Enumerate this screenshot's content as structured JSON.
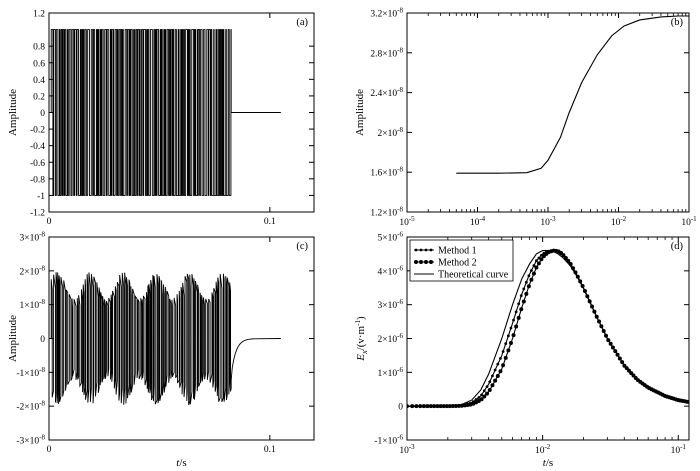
{
  "chart_data": [
    {
      "type": "line",
      "panel_label": "(a)",
      "ylabel": "Amplitude",
      "xlabel": "",
      "xscale": "linear",
      "xlim": [
        0,
        0.12
      ],
      "ylim": [
        -1.2,
        1.2
      ],
      "xticks": [
        {
          "v": 0,
          "t": "0"
        },
        {
          "v": 0.1,
          "t": "0.1"
        }
      ],
      "yticks": [
        {
          "v": 1.2,
          "t": "1.2"
        },
        {
          "v": 0.8,
          "t": "0.8"
        },
        {
          "v": 0.6,
          "t": "0.6"
        },
        {
          "v": 0.4,
          "t": "0.4"
        },
        {
          "v": 0.2,
          "t": "0.2"
        },
        {
          "v": 0,
          "t": "0"
        },
        {
          "v": -0.2,
          "t": "-0.2"
        },
        {
          "v": -0.4,
          "t": "-0.4"
        },
        {
          "v": -0.6,
          "t": "-0.6"
        },
        {
          "v": -0.8,
          "t": "-0.8"
        },
        {
          "v": -1,
          "t": "-1"
        },
        {
          "v": -1.2,
          "t": "-1.2"
        }
      ],
      "series": [
        {
          "values": [
            0,
            1,
            -1,
            1,
            -1,
            0
          ],
          "signal": {
            "kind": "pseudo-random binary sequence",
            "amplitude": 1,
            "start": 0.001,
            "end": 0.0825,
            "after": 0,
            "x_end": 0.105
          }
        }
      ]
    },
    {
      "type": "line",
      "panel_label": "(b)",
      "ylabel": "Amplitude",
      "xlabel": "",
      "xscale": "log",
      "xlim": [
        1e-05,
        0.1
      ],
      "ylim": [
        1.2e-08,
        3.2e-08
      ],
      "xticks": [
        {
          "v": 1e-05,
          "b": "10",
          "e": "-5"
        },
        {
          "v": 0.0001,
          "b": "10",
          "e": "-4"
        },
        {
          "v": 0.001,
          "b": "10",
          "e": "-3"
        },
        {
          "v": 0.01,
          "b": "10",
          "e": "-2"
        },
        {
          "v": 0.1,
          "b": "10",
          "e": "-1"
        }
      ],
      "yticks": [
        {
          "v": 1.2e-08,
          "b": "1.2×10",
          "e": "-8"
        },
        {
          "v": 1.6e-08,
          "b": "1.6×10",
          "e": "-8"
        },
        {
          "v": 2e-08,
          "b": "2×10",
          "e": "-8"
        },
        {
          "v": 2.4e-08,
          "b": "2.4×10",
          "e": "-8"
        },
        {
          "v": 2.8e-08,
          "b": "2.8×10",
          "e": "-8"
        },
        {
          "v": 3.2e-08,
          "b": "3.2×10",
          "e": "-8"
        }
      ],
      "series": [
        {
          "x": [
            5e-05,
            0.0002,
            0.0005,
            0.0008,
            0.001,
            0.0015,
            0.002,
            0.003,
            0.005,
            0.008,
            0.012,
            0.02,
            0.04,
            0.07,
            0.1
          ],
          "y": [
            1.59e-08,
            1.59e-08,
            1.595e-08,
            1.64e-08,
            1.72e-08,
            1.95e-08,
            2.2e-08,
            2.5e-08,
            2.78e-08,
            2.97e-08,
            3.07e-08,
            3.13e-08,
            3.16e-08,
            3.17e-08,
            3.17e-08
          ]
        }
      ]
    },
    {
      "type": "line",
      "panel_label": "(c)",
      "ylabel": "Amplitude",
      "xlabel": "t/s",
      "xscale": "linear",
      "xlim": [
        0,
        0.12
      ],
      "ylim": [
        -3e-08,
        3e-08
      ],
      "xticks": [
        {
          "v": 0,
          "t": "0"
        },
        {
          "v": 0.1,
          "t": "0.1"
        }
      ],
      "yticks": [
        {
          "v": 3e-08,
          "b": "3×10",
          "e": "-8"
        },
        {
          "v": 2e-08,
          "b": "2×10",
          "e": "-8"
        },
        {
          "v": 1e-08,
          "b": "1×10",
          "e": "-8"
        },
        {
          "v": 0,
          "b": "0",
          "e": ""
        },
        {
          "v": -1e-08,
          "b": "-1×10",
          "e": "-8"
        },
        {
          "v": -2e-08,
          "b": "-2×10",
          "e": "-8"
        },
        {
          "v": -3e-08,
          "b": "-3×10",
          "e": "-8"
        }
      ],
      "series": [
        {
          "values": [
            0,
            1.9e-08,
            -1.9e-08,
            1.6e-08,
            -1.7e-08,
            0
          ],
          "signal": {
            "kind": "noisy square wave",
            "amplitude": 1.75e-08,
            "start": 0.001,
            "end": 0.0825,
            "after": 0,
            "x_end": 0.105
          }
        }
      ]
    },
    {
      "type": "line",
      "panel_label": "(d)",
      "ylabel_main": "E",
      "ylabel_sub": "x",
      "ylabel_unit": "/(v·m",
      "ylabel_exp": "-1",
      "ylabel_close": ")",
      "xlabel": "t/s",
      "xscale": "log",
      "xlim": [
        0.001,
        0.12
      ],
      "ylim": [
        -1e-06,
        5e-06
      ],
      "xticks": [
        {
          "v": 0.001,
          "b": "10",
          "e": "-3"
        },
        {
          "v": 0.01,
          "b": "10",
          "e": "-2"
        },
        {
          "v": 0.1,
          "b": "10",
          "e": "-1"
        }
      ],
      "yticks": [
        {
          "v": 5e-06,
          "b": "5×10",
          "e": "-6"
        },
        {
          "v": 4e-06,
          "b": "4×10",
          "e": "-6"
        },
        {
          "v": 3e-06,
          "b": "3×10",
          "e": "-6"
        },
        {
          "v": 2e-06,
          "b": "2×10",
          "e": "-6"
        },
        {
          "v": 1e-06,
          "b": "1×10",
          "e": "-6"
        },
        {
          "v": 0,
          "b": "0",
          "e": ""
        },
        {
          "v": -1e-06,
          "b": "-1×10",
          "e": "-6"
        }
      ],
      "legend": "top-left",
      "series": [
        {
          "name": "Method 1",
          "x": [
            0.001,
            0.0015,
            0.002,
            0.0025,
            0.003,
            0.0035,
            0.004,
            0.005,
            0.006,
            0.007,
            0.008,
            0.009,
            0.01,
            0.011,
            0.012,
            0.013,
            0.014,
            0.016,
            0.018,
            0.02,
            0.025,
            0.03,
            0.04,
            0.05,
            0.06,
            0.08,
            0.1,
            0.12
          ],
          "y": [
            0,
            0,
            0,
            2e-08,
            1e-07,
            3e-07,
            6.5e-07,
            1.5e-06,
            2.45e-06,
            3.3e-06,
            3.9e-06,
            4.3e-06,
            4.5e-06,
            4.58e-06,
            4.6e-06,
            4.57e-06,
            4.48e-06,
            4.2e-06,
            3.85e-06,
            3.5e-06,
            2.65e-06,
            2e-06,
            1.2e-06,
            7.8e-07,
            5.5e-07,
            3e-07,
            1.8e-07,
            1.2e-07
          ]
        },
        {
          "name": "Method 2",
          "x": [
            0.001,
            0.0015,
            0.002,
            0.0025,
            0.003,
            0.0035,
            0.004,
            0.005,
            0.006,
            0.007,
            0.008,
            0.009,
            0.01,
            0.011,
            0.012,
            0.013,
            0.014,
            0.016,
            0.018,
            0.02,
            0.025,
            0.03,
            0.04,
            0.05,
            0.06,
            0.08,
            0.1,
            0.12
          ],
          "y": [
            0,
            0,
            0,
            1e-08,
            5e-08,
            1.8e-07,
            4.2e-07,
            1.1e-06,
            2e-06,
            2.9e-06,
            3.6e-06,
            4.1e-06,
            4.4e-06,
            4.55e-06,
            4.6e-06,
            4.58e-06,
            4.5e-06,
            4.22e-06,
            3.86e-06,
            3.5e-06,
            2.65e-06,
            2e-06,
            1.2e-06,
            7.8e-07,
            5.5e-07,
            3e-07,
            1.8e-07,
            1.2e-07
          ]
        },
        {
          "name": "Theoretical curve",
          "x": [
            0.001,
            0.0015,
            0.002,
            0.0025,
            0.003,
            0.0035,
            0.004,
            0.005,
            0.006,
            0.007,
            0.008,
            0.009,
            0.01,
            0.011,
            0.012,
            0.013,
            0.014,
            0.016,
            0.018,
            0.02,
            0.025,
            0.03,
            0.04,
            0.05,
            0.06,
            0.08,
            0.1,
            0.12
          ],
          "y": [
            0,
            0,
            0,
            4e-08,
            1.8e-07,
            4.8e-07,
            9.5e-07,
            2e-06,
            3e-06,
            3.75e-06,
            4.2e-06,
            4.5e-06,
            4.6e-06,
            4.6e-06,
            4.57e-06,
            4.5e-06,
            4.4e-06,
            4.15e-06,
            3.82e-06,
            3.48e-06,
            2.64e-06,
            2e-06,
            1.2e-06,
            7.8e-07,
            5.5e-07,
            3e-07,
            1.8e-07,
            1.2e-07
          ]
        }
      ]
    }
  ]
}
